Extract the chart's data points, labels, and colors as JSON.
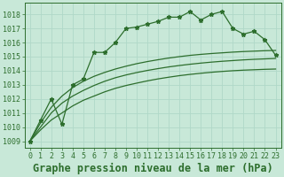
{
  "title": "Graphe pression niveau de la mer (hPa)",
  "bg_color": "#c8e8d8",
  "grid_color": "#b0d8c8",
  "line_color": "#2d6e2d",
  "xlim": [
    -0.5,
    23.5
  ],
  "ylim": [
    1008.5,
    1018.8
  ],
  "yticks": [
    1009,
    1010,
    1011,
    1012,
    1013,
    1014,
    1015,
    1016,
    1017,
    1018
  ],
  "xticks": [
    0,
    1,
    2,
    3,
    4,
    5,
    6,
    7,
    8,
    9,
    10,
    11,
    12,
    13,
    14,
    15,
    16,
    17,
    18,
    19,
    20,
    21,
    22,
    23
  ],
  "pressure": [
    1009.0,
    1010.5,
    1012.0,
    1010.2,
    1013.0,
    1013.4,
    1015.3,
    1015.3,
    1016.0,
    1017.0,
    1017.1,
    1017.3,
    1017.5,
    1017.8,
    1017.8,
    1018.2,
    1017.6,
    1018.0,
    1018.2,
    1017.0,
    1016.6,
    1016.8,
    1016.2,
    1015.1
  ],
  "smooth1": [
    1009.0,
    1009.8,
    1010.5,
    1011.0,
    1011.5,
    1011.9,
    1012.2,
    1012.5,
    1012.75,
    1012.95,
    1013.12,
    1013.28,
    1013.42,
    1013.54,
    1013.65,
    1013.74,
    1013.82,
    1013.89,
    1013.95,
    1014.0,
    1014.04,
    1014.07,
    1014.1,
    1014.12
  ],
  "smooth2": [
    1009.0,
    1010.0,
    1011.0,
    1011.7,
    1012.2,
    1012.6,
    1012.95,
    1013.25,
    1013.5,
    1013.7,
    1013.87,
    1014.02,
    1014.15,
    1014.27,
    1014.37,
    1014.46,
    1014.54,
    1014.61,
    1014.67,
    1014.72,
    1014.77,
    1014.81,
    1014.84,
    1014.87
  ],
  "smooth3": [
    1009.0,
    1010.3,
    1011.4,
    1012.2,
    1012.8,
    1013.25,
    1013.6,
    1013.88,
    1014.12,
    1014.32,
    1014.5,
    1014.65,
    1014.78,
    1014.9,
    1015.0,
    1015.09,
    1015.16,
    1015.22,
    1015.27,
    1015.32,
    1015.36,
    1015.39,
    1015.42,
    1015.44
  ],
  "marker": "*",
  "marker_size": 3.5,
  "linewidth": 0.9,
  "title_fontsize": 8.5,
  "tick_fontsize": 6.0
}
